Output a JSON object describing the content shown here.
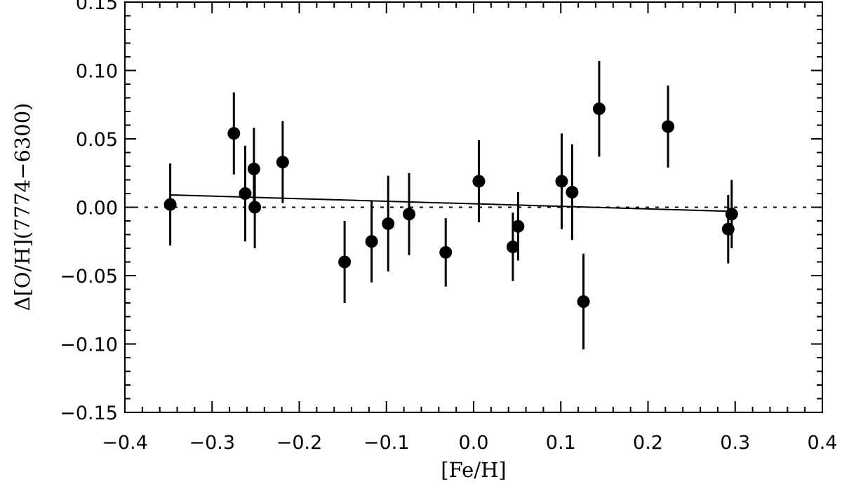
{
  "chart_data": {
    "type": "scatter",
    "title": "",
    "xlabel": "[Fe/H]",
    "ylabel": "Δ[O/H](7774−6300)",
    "xlim": [
      -0.4,
      0.4
    ],
    "ylim": [
      -0.15,
      0.15
    ],
    "xticks": [
      -0.4,
      -0.3,
      -0.2,
      -0.1,
      0.0,
      0.1,
      0.2,
      0.3,
      0.4
    ],
    "xtick_labels": [
      "−0.4",
      "−0.3",
      "−0.2",
      "−0.1",
      "0.0",
      "0.1",
      "0.2",
      "0.3",
      "0.4"
    ],
    "yticks": [
      -0.15,
      -0.1,
      -0.05,
      0.0,
      0.05,
      0.1,
      0.15
    ],
    "ytick_labels": [
      "−0.15",
      "−0.10",
      "−0.05",
      "0.00",
      "0.05",
      "0.10",
      "0.15"
    ],
    "grid": false,
    "legend": "none",
    "points": [
      {
        "x": -0.348,
        "y": 0.002,
        "yerr": 0.03,
        "xerr": 0.006
      },
      {
        "x": -0.275,
        "y": 0.054,
        "yerr": 0.03,
        "xerr": 0.006
      },
      {
        "x": -0.262,
        "y": 0.01,
        "yerr": 0.035,
        "xerr": 0.006
      },
      {
        "x": -0.252,
        "y": 0.028,
        "yerr": 0.03,
        "xerr": 0.006
      },
      {
        "x": -0.251,
        "y": 0.0,
        "yerr": 0.03,
        "xerr": 0.006
      },
      {
        "x": -0.219,
        "y": 0.033,
        "yerr": 0.03,
        "xerr": 0.006
      },
      {
        "x": -0.148,
        "y": -0.04,
        "yerr": 0.03,
        "xerr": 0.006
      },
      {
        "x": -0.117,
        "y": -0.025,
        "yerr": 0.03,
        "xerr": 0.006
      },
      {
        "x": -0.098,
        "y": -0.012,
        "yerr": 0.035,
        "xerr": 0.006
      },
      {
        "x": -0.074,
        "y": -0.005,
        "yerr": 0.03,
        "xerr": 0.006
      },
      {
        "x": -0.032,
        "y": -0.033,
        "yerr": 0.025,
        "xerr": 0.006
      },
      {
        "x": 0.006,
        "y": 0.019,
        "yerr": 0.03,
        "xerr": 0.006
      },
      {
        "x": 0.045,
        "y": -0.029,
        "yerr": 0.025,
        "xerr": 0.006
      },
      {
        "x": 0.051,
        "y": -0.014,
        "yerr": 0.025,
        "xerr": 0.006
      },
      {
        "x": 0.101,
        "y": 0.019,
        "yerr": 0.035,
        "xerr": 0.006
      },
      {
        "x": 0.113,
        "y": 0.011,
        "yerr": 0.035,
        "xerr": 0.006
      },
      {
        "x": 0.126,
        "y": -0.069,
        "yerr": 0.035,
        "xerr": 0.006
      },
      {
        "x": 0.144,
        "y": 0.072,
        "yerr": 0.035,
        "xerr": 0.006
      },
      {
        "x": 0.223,
        "y": 0.059,
        "yerr": 0.03,
        "xerr": 0.006
      },
      {
        "x": 0.292,
        "y": -0.016,
        "yerr": 0.025,
        "xerr": 0.006
      },
      {
        "x": 0.296,
        "y": -0.005,
        "yerr": 0.025,
        "xerr": 0.006
      }
    ],
    "fit_line": {
      "x": [
        -0.348,
        0.296
      ],
      "y": [
        0.009,
        -0.003
      ]
    },
    "reference_line": {
      "y": 0.0,
      "style": "dotted"
    }
  }
}
